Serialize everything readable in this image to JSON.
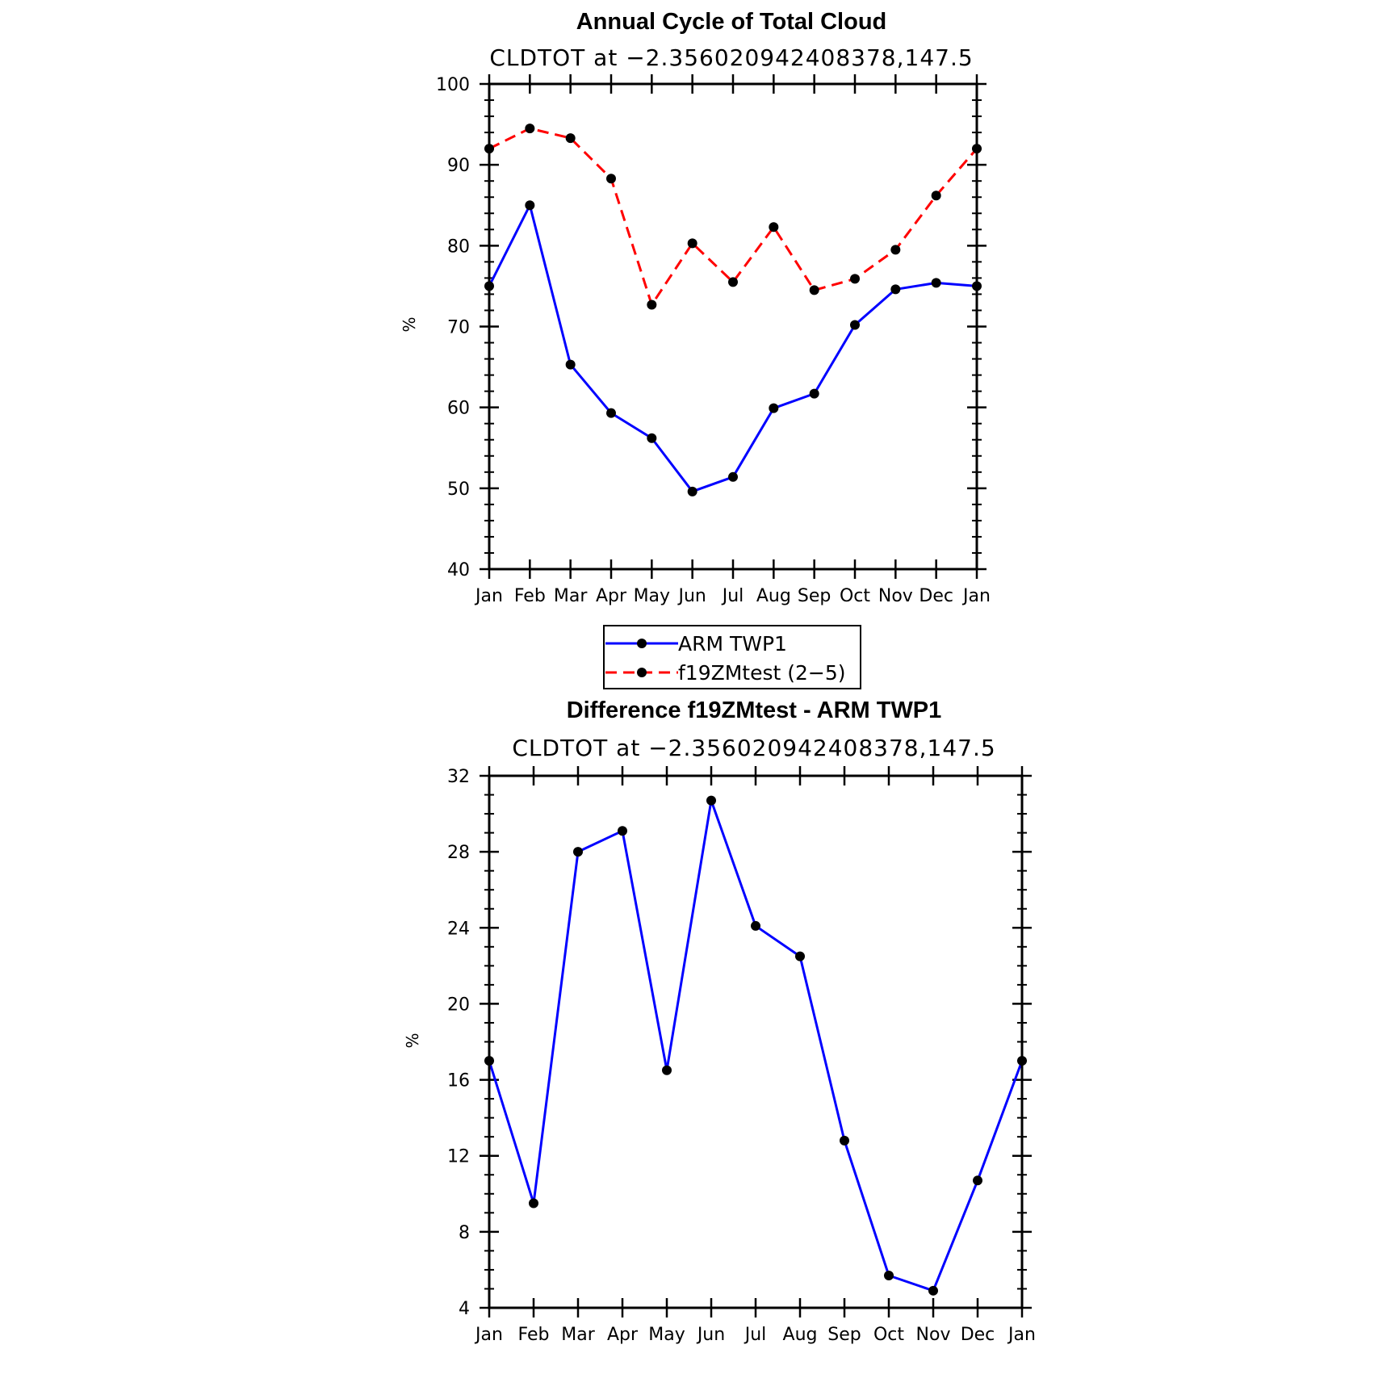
{
  "chart_data": [
    {
      "id": "top",
      "type": "line",
      "title": "Annual Cycle of Total Cloud",
      "subtitle": "CLDTOT at −2.356020942408378,147.5",
      "xlabel": "",
      "ylabel": "%",
      "categories": [
        "Jan",
        "Feb",
        "Mar",
        "Apr",
        "May",
        "Jun",
        "Jul",
        "Aug",
        "Sep",
        "Oct",
        "Nov",
        "Dec",
        "Jan"
      ],
      "ylim": [
        40,
        100
      ],
      "yticks": [
        40,
        50,
        60,
        70,
        80,
        90,
        100
      ],
      "series": [
        {
          "name": "ARM TWP1",
          "color": "#0000ff",
          "dash": "solid",
          "values": [
            75.0,
            85.0,
            65.3,
            59.3,
            56.2,
            49.6,
            51.4,
            59.9,
            61.7,
            70.2,
            74.6,
            75.4,
            75.0
          ]
        },
        {
          "name": "f19ZMtest (2−5)",
          "color": "#ff0000",
          "dash": "dashed",
          "values": [
            92.0,
            94.5,
            93.3,
            88.3,
            72.7,
            80.3,
            75.5,
            82.3,
            74.5,
            75.9,
            79.5,
            86.2,
            92.0
          ]
        }
      ]
    },
    {
      "id": "bottom",
      "type": "line",
      "title": "Difference f19ZMtest - ARM TWP1",
      "subtitle": "CLDTOT at −2.356020942408378,147.5",
      "xlabel": "",
      "ylabel": "%",
      "categories": [
        "Jan",
        "Feb",
        "Mar",
        "Apr",
        "May",
        "Jun",
        "Jul",
        "Aug",
        "Sep",
        "Oct",
        "Nov",
        "Dec",
        "Jan"
      ],
      "ylim": [
        4,
        32
      ],
      "yticks": [
        4,
        8,
        12,
        16,
        20,
        24,
        28,
        32
      ],
      "series": [
        {
          "name": "difference",
          "color": "#0000ff",
          "dash": "solid",
          "values": [
            17.0,
            9.5,
            28.0,
            29.1,
            16.5,
            30.7,
            24.1,
            22.5,
            12.8,
            5.7,
            4.9,
            10.7,
            17.0
          ]
        }
      ]
    }
  ],
  "legend": {
    "items": [
      {
        "label": "ARM TWP1",
        "color": "#0000ff",
        "dash": "solid"
      },
      {
        "label": "f19ZMtest (2−5)",
        "color": "#ff0000",
        "dash": "dashed"
      }
    ]
  }
}
